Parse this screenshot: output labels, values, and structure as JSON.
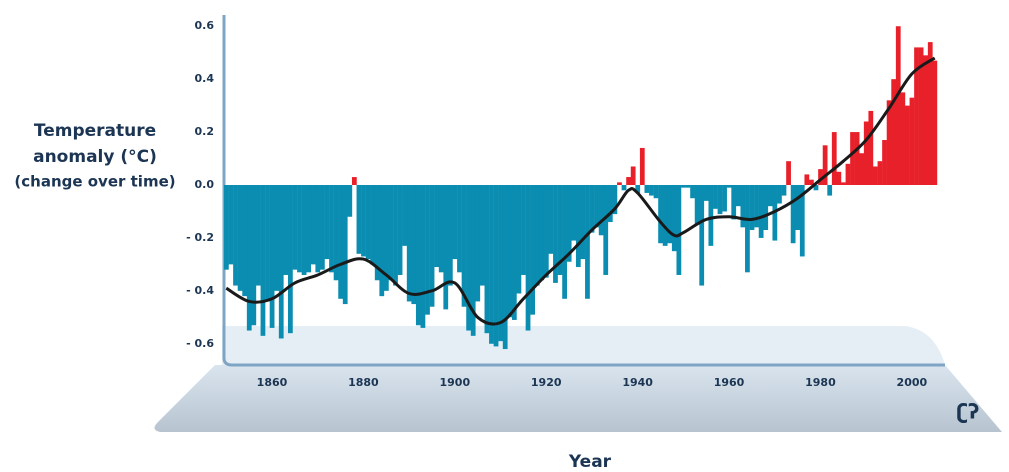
{
  "chart_data": {
    "type": "bar",
    "ylabel_lines": [
      "Temperature",
      "anomaly (°C)",
      "(change over time)"
    ],
    "xlabel": "Year",
    "x": [
      1850,
      1851,
      1852,
      1853,
      1854,
      1855,
      1856,
      1857,
      1858,
      1859,
      1860,
      1861,
      1862,
      1863,
      1864,
      1865,
      1866,
      1867,
      1868,
      1869,
      1870,
      1871,
      1872,
      1873,
      1874,
      1875,
      1876,
      1877,
      1878,
      1879,
      1880,
      1881,
      1882,
      1883,
      1884,
      1885,
      1886,
      1887,
      1888,
      1889,
      1890,
      1891,
      1892,
      1893,
      1894,
      1895,
      1896,
      1897,
      1898,
      1899,
      1900,
      1901,
      1902,
      1903,
      1904,
      1905,
      1906,
      1907,
      1908,
      1909,
      1910,
      1911,
      1912,
      1913,
      1914,
      1915,
      1916,
      1917,
      1918,
      1919,
      1920,
      1921,
      1922,
      1923,
      1924,
      1925,
      1926,
      1927,
      1928,
      1929,
      1930,
      1931,
      1932,
      1933,
      1934,
      1935,
      1936,
      1937,
      1938,
      1939,
      1940,
      1941,
      1942,
      1943,
      1944,
      1945,
      1946,
      1947,
      1948,
      1949,
      1950,
      1951,
      1952,
      1953,
      1954,
      1955,
      1956,
      1957,
      1958,
      1959,
      1960,
      1961,
      1962,
      1963,
      1964,
      1965,
      1966,
      1967,
      1968,
      1969,
      1970,
      1971,
      1972,
      1973,
      1974,
      1975,
      1976,
      1977,
      1978,
      1979,
      1980,
      1981,
      1982,
      1983,
      1984,
      1985,
      1986,
      1987,
      1988,
      1989,
      1990,
      1991,
      1992,
      1993,
      1994,
      1995,
      1996,
      1997,
      1998,
      1999,
      2000,
      2001,
      2002,
      2003,
      2004,
      2005
    ],
    "values": [
      -0.32,
      -0.3,
      -0.38,
      -0.4,
      -0.42,
      -0.55,
      -0.53,
      -0.38,
      -0.57,
      -0.44,
      -0.54,
      -0.4,
      -0.58,
      -0.34,
      -0.56,
      -0.32,
      -0.33,
      -0.34,
      -0.33,
      -0.3,
      -0.33,
      -0.32,
      -0.28,
      -0.33,
      -0.36,
      -0.43,
      -0.45,
      -0.12,
      0.03,
      -0.26,
      -0.27,
      -0.28,
      -0.3,
      -0.36,
      -0.42,
      -0.4,
      -0.36,
      -0.38,
      -0.34,
      -0.23,
      -0.44,
      -0.45,
      -0.53,
      -0.54,
      -0.49,
      -0.46,
      -0.31,
      -0.33,
      -0.47,
      -0.38,
      -0.28,
      -0.33,
      -0.46,
      -0.55,
      -0.57,
      -0.44,
      -0.38,
      -0.56,
      -0.6,
      -0.61,
      -0.59,
      -0.62,
      -0.5,
      -0.51,
      -0.41,
      -0.34,
      -0.55,
      -0.49,
      -0.38,
      -0.36,
      -0.35,
      -0.26,
      -0.37,
      -0.34,
      -0.43,
      -0.29,
      -0.21,
      -0.31,
      -0.28,
      -0.43,
      -0.18,
      -0.16,
      -0.19,
      -0.34,
      -0.14,
      -0.11,
      0.01,
      -0.02,
      0.03,
      0.07,
      -0.03,
      0.14,
      -0.03,
      -0.04,
      -0.05,
      -0.22,
      -0.23,
      -0.22,
      -0.25,
      -0.34,
      -0.01,
      -0.01,
      -0.05,
      -0.15,
      -0.38,
      -0.06,
      -0.23,
      -0.09,
      -0.11,
      -0.1,
      -0.01,
      -0.13,
      -0.08,
      -0.16,
      -0.33,
      -0.17,
      -0.16,
      -0.2,
      -0.17,
      -0.08,
      -0.21,
      -0.07,
      -0.04,
      0.09,
      -0.22,
      -0.17,
      -0.27,
      0.04,
      0.02,
      -0.02,
      0.06,
      0.15,
      -0.04,
      0.2,
      0.05,
      0.01,
      0.08,
      0.2,
      0.2,
      0.12,
      0.24,
      0.28,
      0.07,
      0.09,
      0.17,
      0.32,
      0.4,
      0.6,
      0.35,
      0.3,
      0.33,
      0.52,
      0.52,
      0.49,
      0.54,
      0.47
    ],
    "positive_color": "#e8202a",
    "negative_color": "#0a8db0",
    "smooth": {
      "color": "#1a1a1a",
      "x": [
        1850,
        1855,
        1860,
        1865,
        1870,
        1875,
        1880,
        1885,
        1890,
        1895,
        1900,
        1905,
        1910,
        1915,
        1920,
        1925,
        1930,
        1935,
        1938,
        1940,
        1945,
        1948,
        1950,
        1955,
        1960,
        1965,
        1970,
        1975,
        1980,
        1985,
        1990,
        1995,
        2000,
        2005
      ],
      "values": [
        -0.39,
        -0.44,
        -0.43,
        -0.37,
        -0.34,
        -0.3,
        -0.28,
        -0.34,
        -0.41,
        -0.4,
        -0.37,
        -0.5,
        -0.52,
        -0.43,
        -0.34,
        -0.26,
        -0.17,
        -0.09,
        -0.02,
        -0.03,
        -0.14,
        -0.19,
        -0.18,
        -0.13,
        -0.12,
        -0.13,
        -0.1,
        -0.05,
        0.02,
        0.09,
        0.17,
        0.29,
        0.42,
        0.48
      ]
    },
    "xlim": [
      1849.5,
      2005.5
    ],
    "xticks": [
      1860,
      1880,
      1900,
      1920,
      1940,
      1960,
      1980,
      2000
    ],
    "ylim": [
      -0.65,
      0.65
    ],
    "yticks": [
      {
        "value": -0.6,
        "label": "- 0.6"
      },
      {
        "value": -0.4,
        "label": "- 0.4"
      },
      {
        "value": -0.2,
        "label": "- 0.2"
      },
      {
        "value": 0,
        "label": "0.0"
      },
      0.2,
      0.4,
      0.6
    ]
  }
}
